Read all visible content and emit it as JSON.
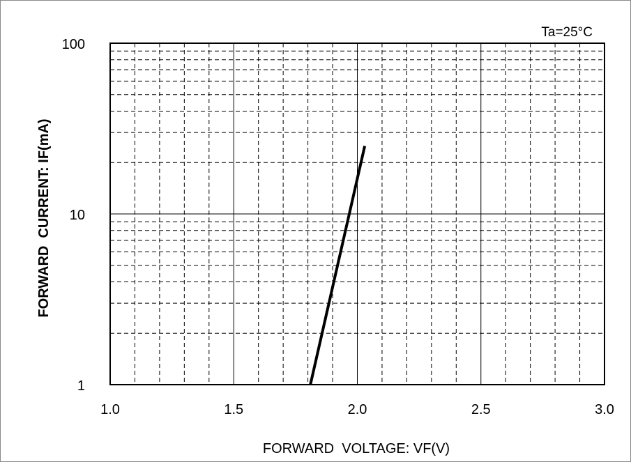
{
  "chart_data": {
    "type": "line",
    "title": "",
    "condition": "Ta=25°C",
    "xlabel": "FORWARD  VOLTAGE: VF(V)",
    "ylabel": "FORWARD  CURRENT: IF(mA)",
    "xlim": [
      1.0,
      3.0
    ],
    "ylim": [
      1,
      100
    ],
    "yscale": "log",
    "grid": true,
    "x_ticks": [
      "1.0",
      "1.5",
      "2.0",
      "2.5",
      "3.0"
    ],
    "y_ticks": [
      "1",
      "10",
      "100"
    ],
    "series": [
      {
        "x": [
          1.81,
          2.03
        ],
        "y": [
          1,
          25
        ]
      }
    ]
  }
}
